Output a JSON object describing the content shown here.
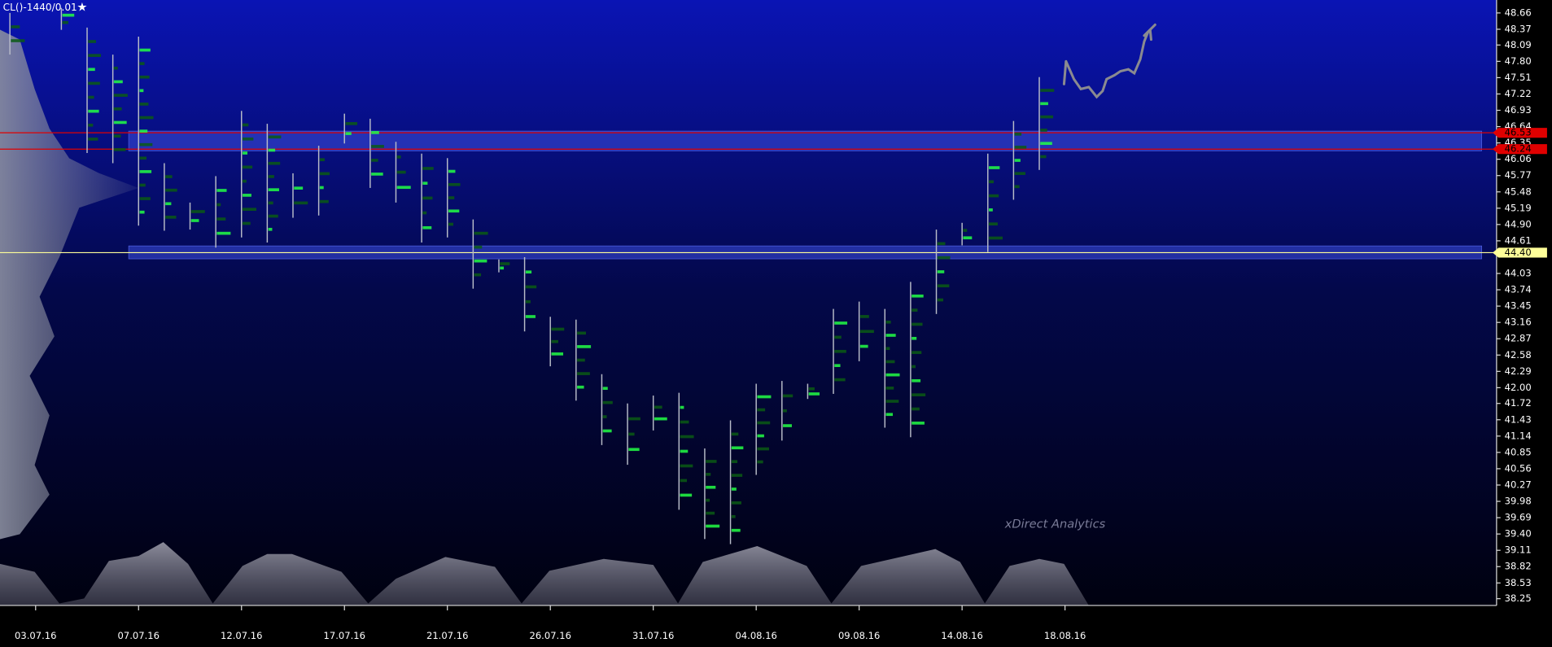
{
  "chart_data": {
    "type": "range",
    "title": "CL()-1440/0.01",
    "watermark": "xDirect Analytics",
    "categories": [
      null,
      "03.07.16",
      null,
      null,
      null,
      "07.07.16",
      null,
      null,
      null,
      "12.07.16",
      null,
      null,
      null,
      "17.07.16",
      null,
      null,
      null,
      "21.07.16",
      null,
      null,
      null,
      "26.07.16",
      null,
      null,
      null,
      "31.07.16",
      null,
      null,
      null,
      "04.08.16",
      null,
      null,
      null,
      "09.08.16",
      null,
      null,
      null,
      "14.08.16",
      null,
      null,
      null,
      "18.08.16"
    ],
    "series": [
      {
        "name": "High",
        "color": "#b8bcc8",
        "values": [
          48.66,
          null,
          48.75,
          48.4,
          47.92,
          48.24,
          45.99,
          45.29,
          45.76,
          46.92,
          46.69,
          45.81,
          46.3,
          46.87,
          46.78,
          46.37,
          46.16,
          46.08,
          44.99,
          44.28,
          44.32,
          43.26,
          43.21,
          42.24,
          41.72,
          41.86,
          41.91,
          40.92,
          41.42,
          42.07,
          42.12,
          42.07,
          43.4,
          43.53,
          43.4,
          43.88,
          44.81,
          44.93,
          46.16,
          46.74,
          47.52,
          null
        ]
      },
      {
        "name": "Low",
        "color": "#b8bcc8",
        "values": [
          47.92,
          null,
          48.36,
          46.17,
          45.99,
          44.88,
          44.79,
          44.81,
          44.49,
          44.67,
          44.58,
          45.02,
          45.06,
          46.34,
          45.55,
          45.29,
          44.58,
          44.67,
          43.76,
          44.05,
          43.0,
          42.38,
          41.77,
          40.98,
          40.63,
          41.24,
          39.83,
          39.31,
          39.22,
          40.45,
          41.06,
          41.8,
          41.89,
          42.47,
          41.29,
          41.12,
          43.31,
          44.53,
          44.41,
          45.34,
          45.87,
          null
        ]
      }
    ],
    "ylim": [
      38.13,
      48.89
    ],
    "yticks": [
      48.66,
      48.37,
      48.09,
      {
        "value": 47.8,
        "label": "47.80"
      },
      47.51,
      47.22,
      46.93,
      46.64,
      46.35,
      46.06,
      45.77,
      45.48,
      45.19,
      {
        "value": 44.9,
        "label": "44.90"
      },
      44.61,
      44.03,
      43.74,
      43.45,
      43.16,
      42.87,
      42.58,
      42.29,
      {
        "value": 42,
        "label": "42.00"
      },
      41.72,
      41.43,
      41.14,
      40.85,
      40.56,
      40.27,
      39.98,
      39.69,
      {
        "value": 39.4,
        "label": "39.40"
      },
      39.11,
      38.82,
      38.53,
      38.25
    ],
    "levels": [
      {
        "value": 46.53,
        "label": "46.53",
        "color": "#e00000"
      },
      {
        "value": 46.24,
        "label": "46.24",
        "color": "#e00000"
      },
      {
        "value": 44.4,
        "label": "44.40",
        "color": "#ffff99"
      }
    ],
    "zones": [
      {
        "low": 46.21,
        "high": 46.56
      },
      {
        "low": 44.29,
        "high": 44.52
      }
    ]
  }
}
